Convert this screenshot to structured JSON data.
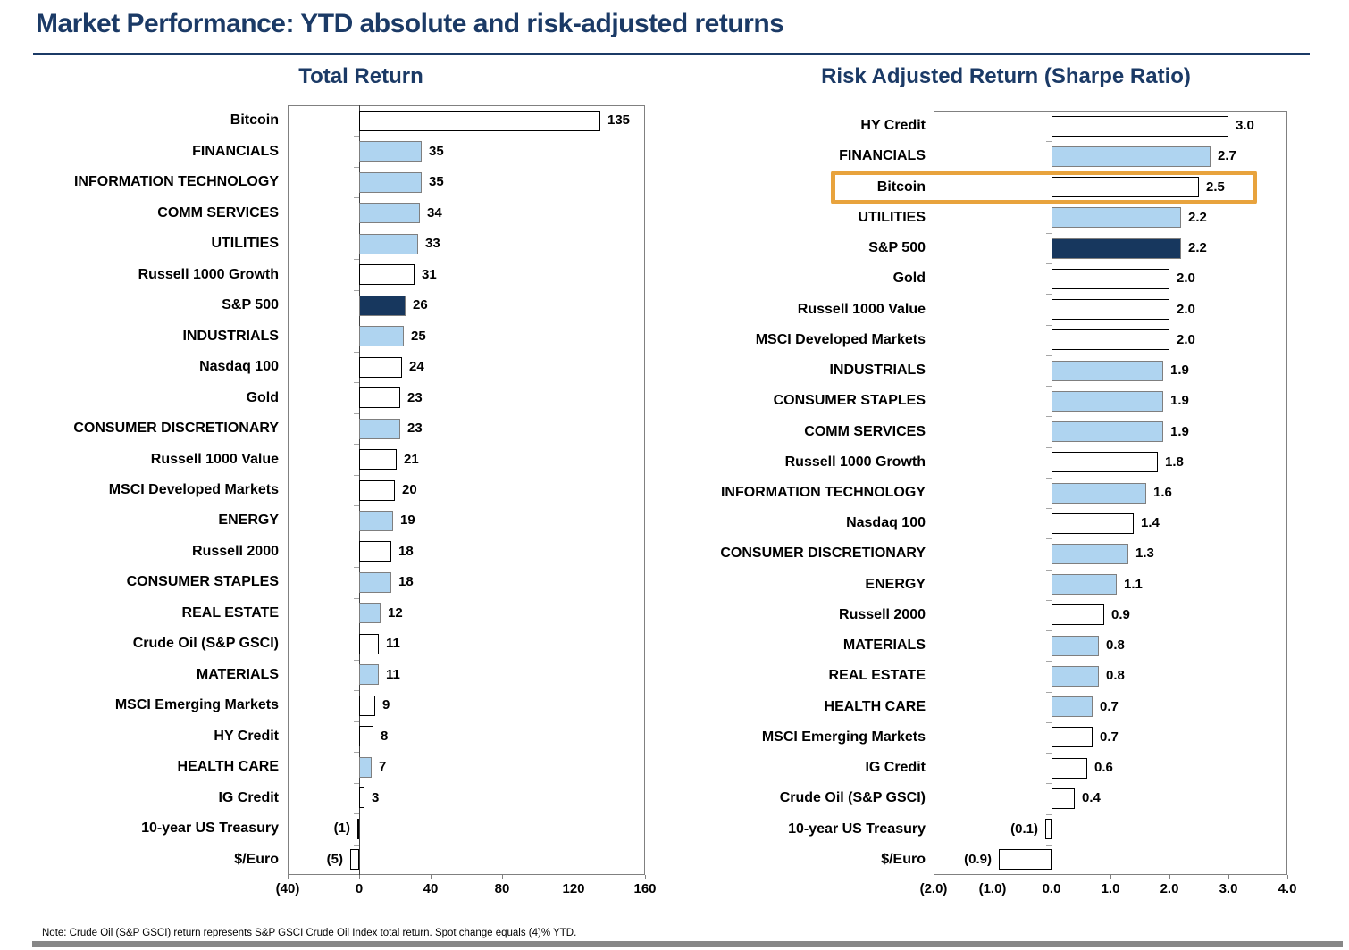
{
  "page": {
    "title": "Market Performance: YTD absolute and risk-adjusted returns",
    "note": "Note: Crude Oil (S&P GSCI) return represents S&P GSCI Crude Oil Index total return. Spot change equals (4)% YTD.",
    "colors": {
      "title_navy": "#1B3A66",
      "bar_navy": "#17375E",
      "bar_blue": "#AFD4F0",
      "bar_white": "#FFFFFF",
      "highlight_orange": "#E8A33D",
      "plot_border_gray": "#808080",
      "footer_bar_gray": "#878787"
    }
  },
  "chart_data": [
    {
      "type": "bar",
      "orientation": "horizontal",
      "title": "Total Return",
      "xlabel": "",
      "ylabel": "",
      "xlim": [
        -40,
        160
      ],
      "grid": false,
      "legend": "none",
      "xticks": [
        {
          "value": -40,
          "label": "(40)"
        },
        {
          "value": 0,
          "label": "0"
        },
        {
          "value": 40,
          "label": "40"
        },
        {
          "value": 80,
          "label": "80"
        },
        {
          "value": 120,
          "label": "120"
        },
        {
          "value": 160,
          "label": "160"
        }
      ],
      "rows": [
        {
          "category": "Bitcoin",
          "value": 135,
          "label": "135",
          "style": "white"
        },
        {
          "category": "FINANCIALS",
          "value": 35,
          "label": "35",
          "style": "blue"
        },
        {
          "category": "INFORMATION TECHNOLOGY",
          "value": 35,
          "label": "35",
          "style": "blue"
        },
        {
          "category": "COMM SERVICES",
          "value": 34,
          "label": "34",
          "style": "blue"
        },
        {
          "category": "UTILITIES",
          "value": 33,
          "label": "33",
          "style": "blue"
        },
        {
          "category": "Russell 1000 Growth",
          "value": 31,
          "label": "31",
          "style": "white"
        },
        {
          "category": "S&P 500",
          "value": 26,
          "label": "26",
          "style": "navy"
        },
        {
          "category": "INDUSTRIALS",
          "value": 25,
          "label": "25",
          "style": "blue"
        },
        {
          "category": "Nasdaq 100",
          "value": 24,
          "label": "24",
          "style": "white"
        },
        {
          "category": "Gold",
          "value": 23,
          "label": "23",
          "style": "white"
        },
        {
          "category": "CONSUMER DISCRETIONARY",
          "value": 23,
          "label": "23",
          "style": "blue"
        },
        {
          "category": "Russell 1000 Value",
          "value": 21,
          "label": "21",
          "style": "white"
        },
        {
          "category": "MSCI Developed Markets",
          "value": 20,
          "label": "20",
          "style": "white"
        },
        {
          "category": "ENERGY",
          "value": 19,
          "label": "19",
          "style": "blue"
        },
        {
          "category": "Russell 2000",
          "value": 18,
          "label": "18",
          "style": "white"
        },
        {
          "category": "CONSUMER STAPLES",
          "value": 18,
          "label": "18",
          "style": "blue"
        },
        {
          "category": "REAL ESTATE",
          "value": 12,
          "label": "12",
          "style": "blue"
        },
        {
          "category": "Crude Oil (S&P GSCI)",
          "value": 11,
          "label": "11",
          "style": "white"
        },
        {
          "category": "MATERIALS",
          "value": 11,
          "label": "11",
          "style": "blue"
        },
        {
          "category": "MSCI Emerging Markets",
          "value": 9,
          "label": "9",
          "style": "white"
        },
        {
          "category": "HY Credit",
          "value": 8,
          "label": "8",
          "style": "white"
        },
        {
          "category": "HEALTH CARE",
          "value": 7,
          "label": "7",
          "style": "blue"
        },
        {
          "category": "IG Credit",
          "value": 3,
          "label": "3",
          "style": "white"
        },
        {
          "category": "10-year US Treasury",
          "value": -1,
          "label": "(1)",
          "style": "white"
        },
        {
          "category": "$/Euro",
          "value": -5,
          "label": "(5)",
          "style": "white"
        }
      ]
    },
    {
      "type": "bar",
      "orientation": "horizontal",
      "title": "Risk Adjusted Return (Sharpe Ratio)",
      "xlabel": "",
      "ylabel": "",
      "xlim": [
        -2,
        4
      ],
      "grid": false,
      "legend": "none",
      "xticks": [
        {
          "value": -2,
          "label": "(2.0)"
        },
        {
          "value": -1,
          "label": "(1.0)"
        },
        {
          "value": 0,
          "label": "0.0"
        },
        {
          "value": 1,
          "label": "1.0"
        },
        {
          "value": 2,
          "label": "2.0"
        },
        {
          "value": 3,
          "label": "3.0"
        },
        {
          "value": 4,
          "label": "4.0"
        }
      ],
      "rows": [
        {
          "category": "HY Credit",
          "value": 3.0,
          "label": "3.0",
          "style": "white"
        },
        {
          "category": "FINANCIALS",
          "value": 2.7,
          "label": "2.7",
          "style": "blue"
        },
        {
          "category": "Bitcoin",
          "value": 2.5,
          "label": "2.5",
          "style": "white",
          "highlight": true
        },
        {
          "category": "UTILITIES",
          "value": 2.2,
          "label": "2.2",
          "style": "blue"
        },
        {
          "category": "S&P 500",
          "value": 2.2,
          "label": "2.2",
          "style": "navy"
        },
        {
          "category": "Gold",
          "value": 2.0,
          "label": "2.0",
          "style": "white"
        },
        {
          "category": "Russell 1000 Value",
          "value": 2.0,
          "label": "2.0",
          "style": "white"
        },
        {
          "category": "MSCI Developed Markets",
          "value": 2.0,
          "label": "2.0",
          "style": "white"
        },
        {
          "category": "INDUSTRIALS",
          "value": 1.9,
          "label": "1.9",
          "style": "blue"
        },
        {
          "category": "CONSUMER STAPLES",
          "value": 1.9,
          "label": "1.9",
          "style": "blue"
        },
        {
          "category": "COMM SERVICES",
          "value": 1.9,
          "label": "1.9",
          "style": "blue"
        },
        {
          "category": "Russell 1000 Growth",
          "value": 1.8,
          "label": "1.8",
          "style": "white"
        },
        {
          "category": "INFORMATION TECHNOLOGY",
          "value": 1.6,
          "label": "1.6",
          "style": "blue"
        },
        {
          "category": "Nasdaq 100",
          "value": 1.4,
          "label": "1.4",
          "style": "white"
        },
        {
          "category": "CONSUMER DISCRETIONARY",
          "value": 1.3,
          "label": "1.3",
          "style": "blue"
        },
        {
          "category": "ENERGY",
          "value": 1.1,
          "label": "1.1",
          "style": "blue"
        },
        {
          "category": "Russell 2000",
          "value": 0.9,
          "label": "0.9",
          "style": "white"
        },
        {
          "category": "MATERIALS",
          "value": 0.8,
          "label": "0.8",
          "style": "blue"
        },
        {
          "category": "REAL ESTATE",
          "value": 0.8,
          "label": "0.8",
          "style": "blue"
        },
        {
          "category": "HEALTH CARE",
          "value": 0.7,
          "label": "0.7",
          "style": "blue"
        },
        {
          "category": "MSCI Emerging Markets",
          "value": 0.7,
          "label": "0.7",
          "style": "white"
        },
        {
          "category": "IG Credit",
          "value": 0.6,
          "label": "0.6",
          "style": "white"
        },
        {
          "category": "Crude Oil (S&P GSCI)",
          "value": 0.4,
          "label": "0.4",
          "style": "white"
        },
        {
          "category": "10-year US Treasury",
          "value": -0.1,
          "label": "(0.1)",
          "style": "white"
        },
        {
          "category": "$/Euro",
          "value": -0.9,
          "label": "(0.9)",
          "style": "white"
        }
      ]
    }
  ]
}
